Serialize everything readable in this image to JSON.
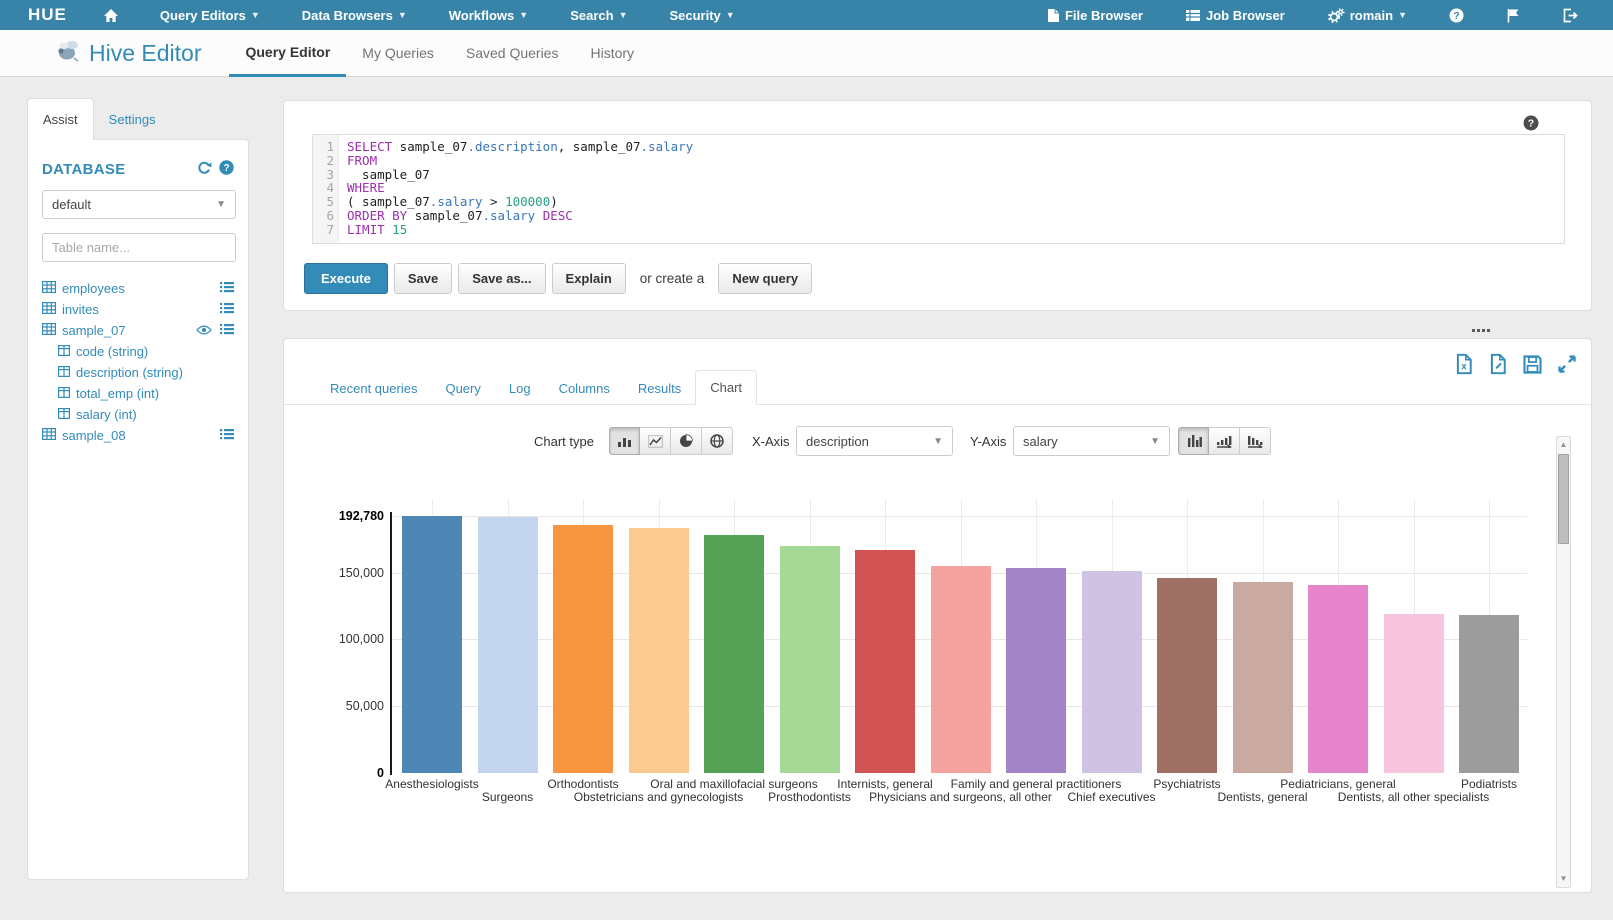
{
  "colors": {
    "topnav_bg": "#3884a8",
    "accent": "#338bb8",
    "execute_bg": "#338bb8"
  },
  "topnav": {
    "logo": "HUE",
    "menus": [
      {
        "label": "Query Editors"
      },
      {
        "label": "Data Browsers"
      },
      {
        "label": "Workflows"
      },
      {
        "label": "Search"
      },
      {
        "label": "Security"
      }
    ],
    "right": [
      {
        "label": "File Browser",
        "icon": "file"
      },
      {
        "label": "Job Browser",
        "icon": "joblist"
      },
      {
        "label": "romain",
        "icon": "gears",
        "caret": true
      }
    ]
  },
  "appbar": {
    "title": "Hive Editor",
    "tabs": [
      {
        "label": "Query Editor",
        "active": true
      },
      {
        "label": "My Queries"
      },
      {
        "label": "Saved Queries"
      },
      {
        "label": "History"
      }
    ]
  },
  "assist": {
    "tabs": [
      {
        "label": "Assist",
        "active": true
      },
      {
        "label": "Settings"
      }
    ],
    "database_label": "DATABASE",
    "database_value": "default",
    "table_filter_placeholder": "Table name...",
    "tables": [
      {
        "name": "employees",
        "icons": [
          "list"
        ]
      },
      {
        "name": "invites",
        "icons": [
          "list"
        ]
      },
      {
        "name": "sample_07",
        "icons": [
          "eye",
          "list"
        ],
        "columns": [
          "code (string)",
          "description (string)",
          "total_emp (int)",
          "salary (int)"
        ]
      },
      {
        "name": "sample_08",
        "icons": [
          "list"
        ]
      }
    ]
  },
  "editor": {
    "lines": [
      {
        "n": "1",
        "tokens": [
          [
            "kw",
            "SELECT"
          ],
          [
            "pl",
            " sample_07"
          ],
          [
            "at",
            ".description"
          ],
          [
            "pl",
            ", sample_07"
          ],
          [
            "at",
            ".salary"
          ]
        ]
      },
      {
        "n": "2",
        "tokens": [
          [
            "kw",
            "FROM"
          ]
        ]
      },
      {
        "n": "3",
        "tokens": [
          [
            "pl",
            "  sample_07"
          ]
        ]
      },
      {
        "n": "4",
        "tokens": [
          [
            "kw",
            "WHERE"
          ]
        ]
      },
      {
        "n": "5",
        "tokens": [
          [
            "pl",
            "( sample_07"
          ],
          [
            "at",
            ".salary"
          ],
          [
            "pl",
            " > "
          ],
          [
            "num",
            "100000"
          ],
          [
            "pl",
            ")"
          ]
        ]
      },
      {
        "n": "6",
        "tokens": [
          [
            "kw",
            "ORDER BY"
          ],
          [
            "pl",
            " sample_07"
          ],
          [
            "at",
            ".salary"
          ],
          [
            "kw",
            " DESC"
          ]
        ]
      },
      {
        "n": "7",
        "tokens": [
          [
            "kw",
            "LIMIT"
          ],
          [
            "num",
            " 15"
          ]
        ]
      }
    ]
  },
  "actions": {
    "execute": "Execute",
    "save": "Save",
    "save_as": "Save as...",
    "explain": "Explain",
    "or_create": "or create a",
    "new_query": "New query"
  },
  "results": {
    "tabs": [
      {
        "label": "Recent queries"
      },
      {
        "label": "Query"
      },
      {
        "label": "Log"
      },
      {
        "label": "Columns"
      },
      {
        "label": "Results"
      },
      {
        "label": "Chart",
        "active": true
      }
    ]
  },
  "chart_controls": {
    "chart_type_label": "Chart type",
    "type_buttons": [
      "bar-chart",
      "line-chart",
      "pie-chart",
      "map-chart"
    ],
    "active_type": "bar-chart",
    "x_axis_label": "X-Axis",
    "x_axis_value": "description",
    "y_axis_label": "Y-Axis",
    "y_axis_value": "salary",
    "sort_buttons": [
      "sort-none",
      "sort-asc",
      "sort-desc"
    ],
    "active_sort": "sort-none"
  },
  "chart_data": {
    "type": "bar",
    "title": "",
    "xlabel": "description",
    "ylabel": "salary",
    "ylim": [
      0,
      192780
    ],
    "grid": true,
    "legend": "none",
    "y_ticks": [
      {
        "v": 192780,
        "label": "192,780",
        "bold": true
      },
      {
        "v": 150000,
        "label": "150,000"
      },
      {
        "v": 100000,
        "label": "100,000"
      },
      {
        "v": 50000,
        "label": "50,000"
      },
      {
        "v": 0,
        "label": "0",
        "bold": true
      }
    ],
    "categories": [
      "Anesthesiologists",
      "Surgeons",
      "Orthodontists",
      "Obstetricians and gynecologists",
      "Oral and maxillofacial surgeons",
      "Prosthodontists",
      "Internists, general",
      "Physicians and surgeons, all other",
      "Family and general practitioners",
      "Chief executives",
      "Psychiatrists",
      "Dentists, general",
      "Pediatricians, general",
      "Dentists, all other specialists",
      "Podiatrists"
    ],
    "values": [
      192780,
      191410,
      185340,
      183610,
      178440,
      169810,
      167270,
      155150,
      153640,
      151370,
      146150,
      142870,
      140690,
      119000,
      118500
    ],
    "bar_colors": [
      "#4e87b6",
      "#c3d5ed",
      "#f7963f",
      "#fbca90",
      "#55a257",
      "#a7d996",
      "#d25353",
      "#f4a3a0",
      "#a285c6",
      "#cfc3e3",
      "#9f7165",
      "#c9a9a0",
      "#e685cb",
      "#f7c5dd",
      "#9c9c9c"
    ]
  }
}
